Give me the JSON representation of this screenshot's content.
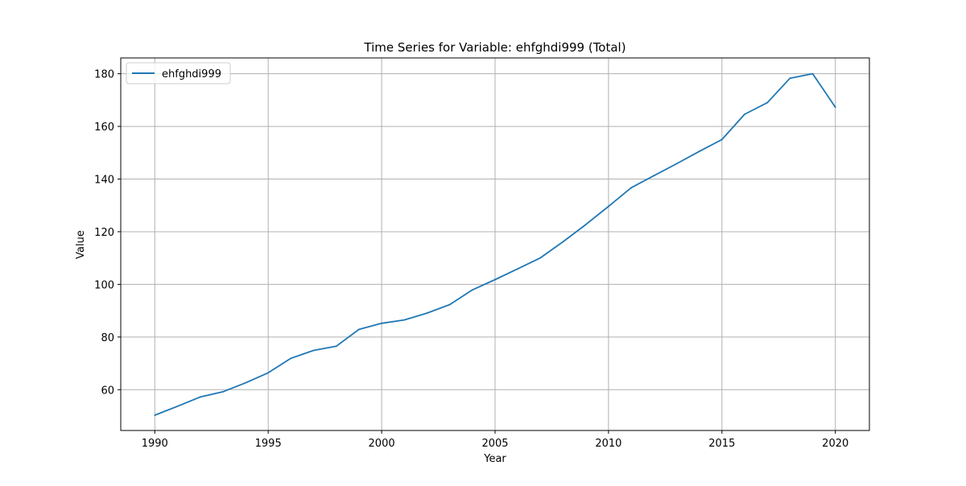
{
  "chart_data": {
    "type": "line",
    "title": "Time Series for Variable: ehfghdi999 (Total)",
    "xlabel": "Year",
    "ylabel": "Value",
    "xlim": [
      1988.5,
      2021.5
    ],
    "ylim": [
      44.5,
      186
    ],
    "xticks": [
      1990,
      1995,
      2000,
      2005,
      2010,
      2015,
      2020
    ],
    "yticks": [
      60,
      80,
      100,
      120,
      140,
      160,
      180
    ],
    "grid": true,
    "legend_position": "top-left",
    "series": [
      {
        "name": "ehfghdi999",
        "color": "#1f77b4",
        "x": [
          1990,
          1991,
          1992,
          1993,
          1994,
          1995,
          1996,
          1997,
          1998,
          1999,
          2000,
          2001,
          2002,
          2003,
          2004,
          2005,
          2006,
          2007,
          2008,
          2009,
          2010,
          2011,
          2012,
          2013,
          2014,
          2015,
          2016,
          2017,
          2018,
          2019,
          2020
        ],
        "y": [
          50.3,
          53.7,
          57.2,
          59.2,
          62.6,
          66.4,
          71.9,
          74.9,
          76.5,
          82.9,
          85.2,
          86.5,
          89.1,
          92.3,
          97.9,
          101.8,
          105.9,
          110.1,
          116.2,
          122.7,
          129.6,
          136.7,
          141.3,
          145.8,
          150.5,
          155.0,
          164.6,
          169.0,
          178.3,
          180.0,
          167.3
        ]
      }
    ]
  }
}
